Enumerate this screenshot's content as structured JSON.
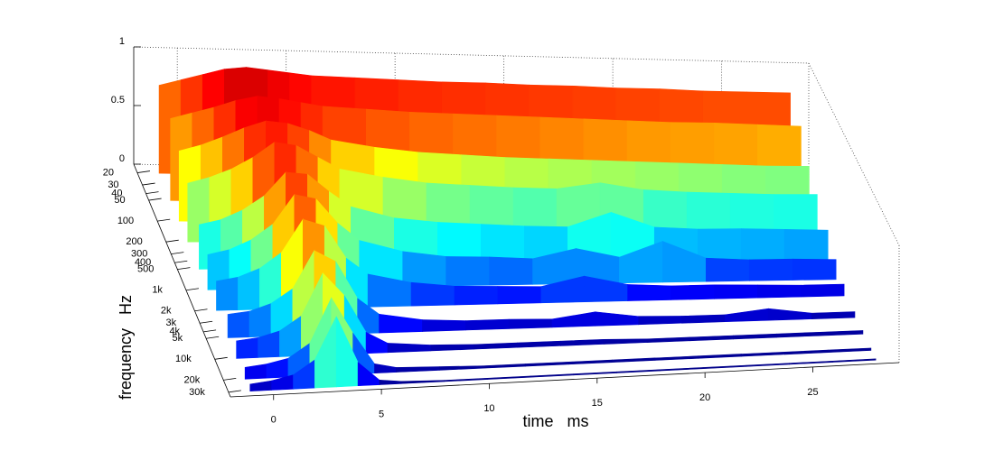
{
  "chart_data": {
    "type": "surface",
    "xlabel": "time   ms",
    "ylabel": "frequency   Hz",
    "x": [
      -1,
      0,
      1,
      2,
      3,
      4,
      5,
      6,
      8,
      10,
      12,
      14,
      16,
      18,
      20,
      22,
      24,
      26,
      28
    ],
    "rows": [
      {
        "frequency": 20,
        "values": [
          0.75,
          0.8,
          0.85,
          0.9,
          0.92,
          0.9,
          0.88,
          0.86,
          0.85,
          0.84,
          0.83,
          0.83,
          0.82,
          0.82,
          0.81,
          0.81,
          0.8,
          0.8,
          0.8
        ]
      },
      {
        "frequency": 50,
        "values": [
          0.7,
          0.75,
          0.8,
          0.86,
          0.9,
          0.88,
          0.85,
          0.82,
          0.8,
          0.78,
          0.77,
          0.76,
          0.75,
          0.74,
          0.73,
          0.72,
          0.72,
          0.71,
          0.7
        ]
      },
      {
        "frequency": 100,
        "values": [
          0.6,
          0.65,
          0.72,
          0.8,
          0.86,
          0.84,
          0.78,
          0.7,
          0.64,
          0.6,
          0.58,
          0.56,
          0.55,
          0.54,
          0.53,
          0.52,
          0.51,
          0.5,
          0.5
        ]
      },
      {
        "frequency": 200,
        "values": [
          0.5,
          0.55,
          0.62,
          0.72,
          0.85,
          0.82,
          0.72,
          0.62,
          0.55,
          0.5,
          0.48,
          0.46,
          0.45,
          0.5,
          0.44,
          0.42,
          0.41,
          0.4,
          0.4
        ]
      },
      {
        "frequency": 500,
        "values": [
          0.38,
          0.42,
          0.5,
          0.62,
          0.82,
          0.8,
          0.65,
          0.52,
          0.42,
          0.38,
          0.36,
          0.34,
          0.33,
          0.45,
          0.32,
          0.3,
          0.3,
          0.29,
          0.28
        ]
      },
      {
        "frequency": 1000,
        "values": [
          0.3,
          0.34,
          0.42,
          0.55,
          0.8,
          0.76,
          0.55,
          0.4,
          0.3,
          0.25,
          0.24,
          0.22,
          0.3,
          0.22,
          0.35,
          0.2,
          0.18,
          0.18,
          0.17
        ]
      },
      {
        "frequency": 2000,
        "values": [
          0.25,
          0.28,
          0.35,
          0.48,
          0.76,
          0.7,
          0.42,
          0.28,
          0.2,
          0.16,
          0.15,
          0.14,
          0.22,
          0.14,
          0.12,
          0.12,
          0.11,
          0.1,
          0.1
        ]
      },
      {
        "frequency": 5000,
        "values": [
          0.2,
          0.22,
          0.28,
          0.4,
          0.72,
          0.62,
          0.3,
          0.16,
          0.1,
          0.08,
          0.08,
          0.07,
          0.12,
          0.07,
          0.06,
          0.06,
          0.1,
          0.05,
          0.05
        ]
      },
      {
        "frequency": 10000,
        "values": [
          0.15,
          0.17,
          0.22,
          0.34,
          0.7,
          0.5,
          0.18,
          0.08,
          0.05,
          0.04,
          0.04,
          0.04,
          0.04,
          0.03,
          0.03,
          0.03,
          0.03,
          0.03,
          0.03
        ]
      },
      {
        "frequency": 20000,
        "values": [
          0.1,
          0.12,
          0.16,
          0.28,
          0.66,
          0.35,
          0.08,
          0.04,
          0.03,
          0.02,
          0.02,
          0.02,
          0.02,
          0.02,
          0.02,
          0.02,
          0.02,
          0.02,
          0.02
        ]
      },
      {
        "frequency": 30000,
        "values": [
          0.06,
          0.08,
          0.12,
          0.24,
          0.6,
          0.2,
          0.04,
          0.02,
          0.01,
          0.01,
          0.01,
          0.01,
          0.01,
          0.01,
          0.01,
          0.01,
          0.01,
          0.01,
          0.01
        ]
      }
    ],
    "xlim": [
      -2,
      29
    ],
    "xticks": [
      0,
      5,
      10,
      15,
      20,
      25
    ],
    "ylim": [
      15,
      35000
    ],
    "yscale": "log",
    "yticks": [
      20,
      30,
      40,
      50,
      100,
      200,
      300,
      400,
      500,
      {
        "value": 1000,
        "label": "1k"
      },
      {
        "value": 2000,
        "label": "2k"
      },
      {
        "value": 3000,
        "label": "3k"
      },
      {
        "value": 4000,
        "label": "4k"
      },
      {
        "value": 5000,
        "label": "5k"
      },
      {
        "value": 10000,
        "label": "10k"
      },
      {
        "value": 20000,
        "label": "20k"
      },
      {
        "value": 30000,
        "label": "30k"
      }
    ],
    "zlim": [
      0,
      1
    ],
    "zticks": [
      0,
      0.5,
      1
    ],
    "colormap": "jet"
  }
}
